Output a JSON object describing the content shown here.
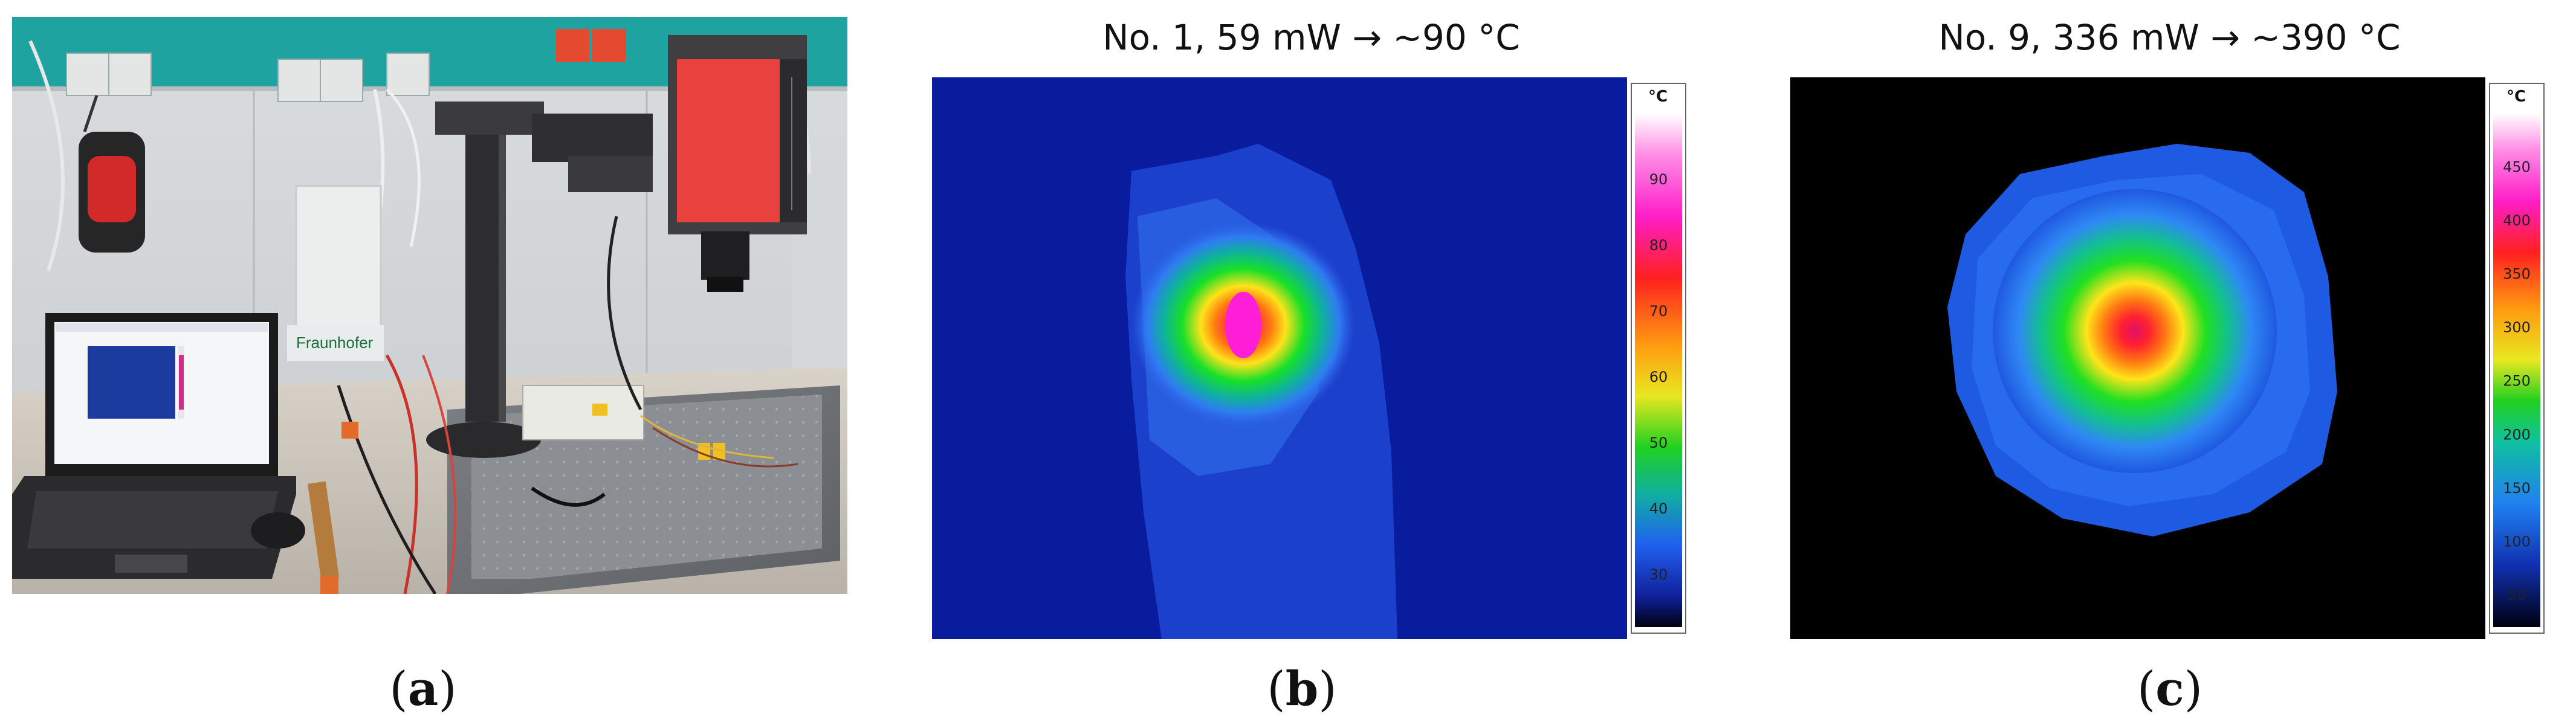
{
  "panels": [
    {
      "id": "a",
      "label_prefix": "(",
      "label_letter": "a",
      "label_suffix": ")"
    },
    {
      "id": "b",
      "title": "No. 1, 59 mW → ~90 °C",
      "label_prefix": "(",
      "label_letter": "b",
      "label_suffix": ")",
      "colorbar": {
        "unit": "°C",
        "ticks": [
          "90",
          "80",
          "70",
          "60",
          "50",
          "40",
          "30"
        ],
        "range": [
          22,
          100
        ]
      }
    },
    {
      "id": "c",
      "title": "No. 9, 336 mW → ~390 °C",
      "label_prefix": "(",
      "label_letter": "c",
      "label_suffix": ")",
      "colorbar": {
        "unit": "°C",
        "ticks": [
          "450",
          "400",
          "350",
          "300",
          "250",
          "200",
          "150",
          "100",
          "50"
        ],
        "range": [
          20,
          500
        ]
      }
    }
  ],
  "photo": {
    "laptop_brand": "Fraunhofer"
  },
  "colors": {
    "thermal_background_b": "#0a1c9e",
    "thermal_background_c": "#000000",
    "camera_body": "#e8413e",
    "wall_stripe": "#1fa3a0"
  }
}
